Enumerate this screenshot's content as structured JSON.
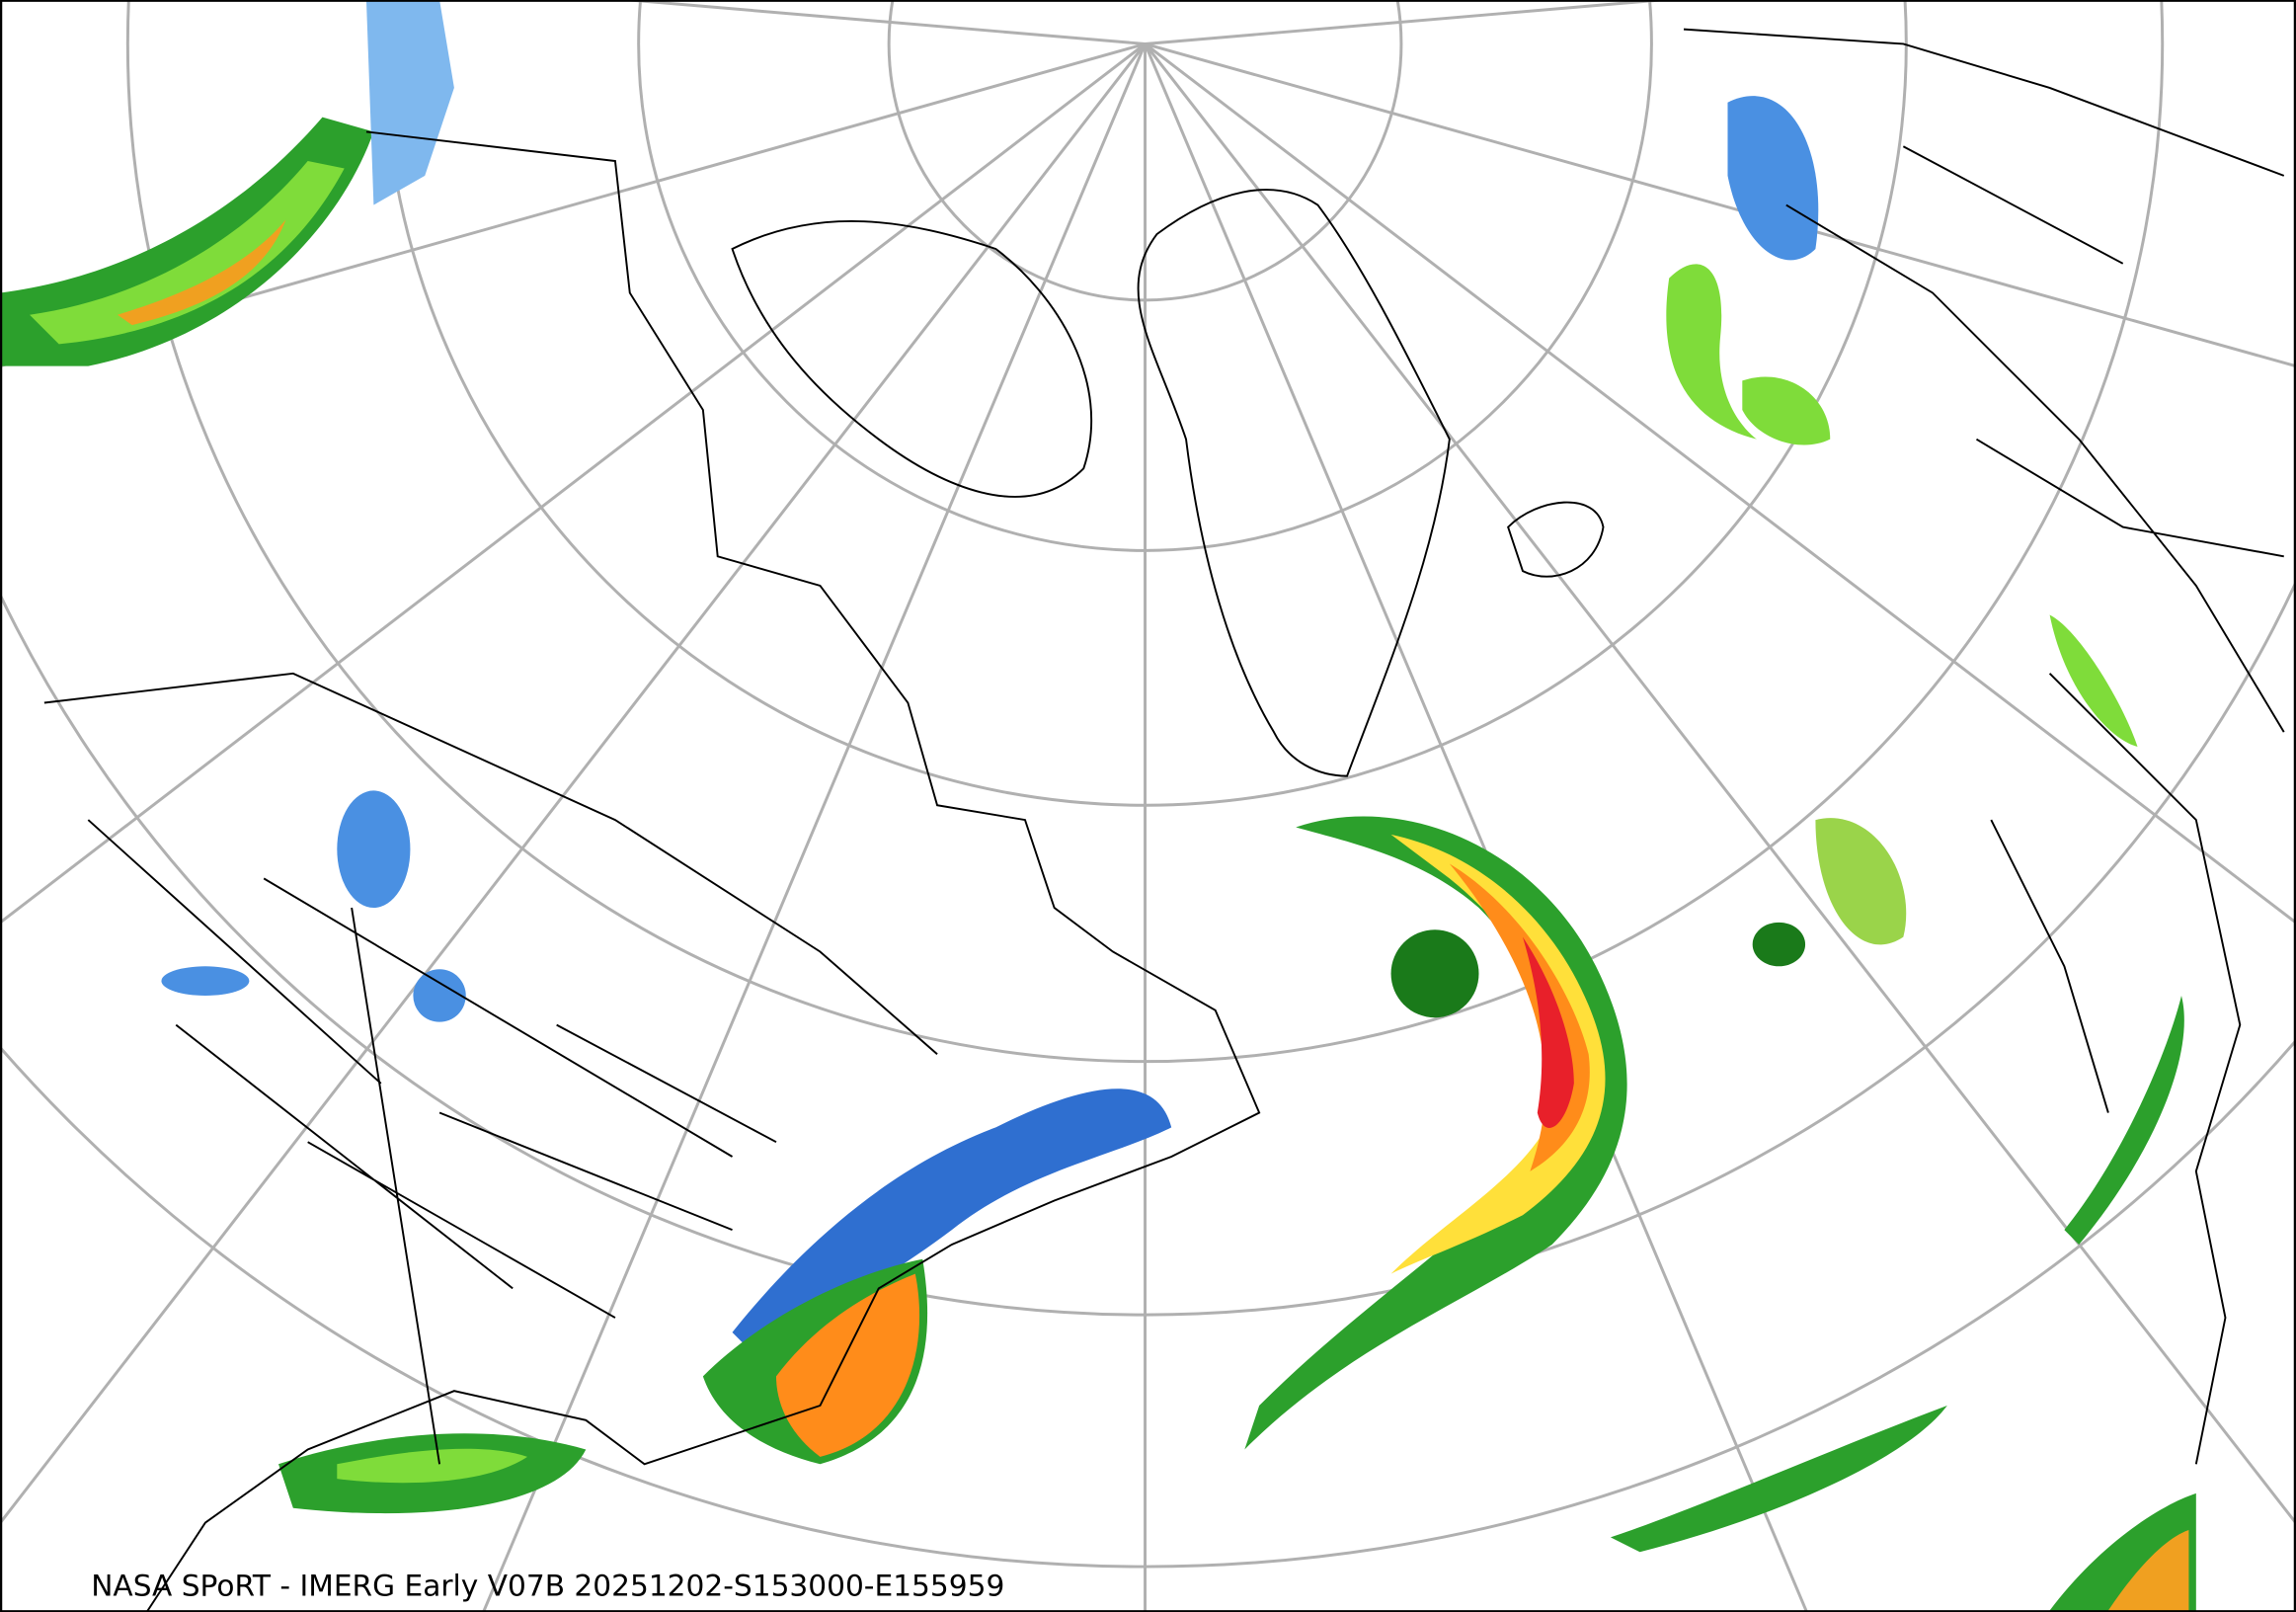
{
  "footer": {
    "text": "NASA SPoRT - IMERG Early V07B 20251202-S153000-E155959"
  }
}
